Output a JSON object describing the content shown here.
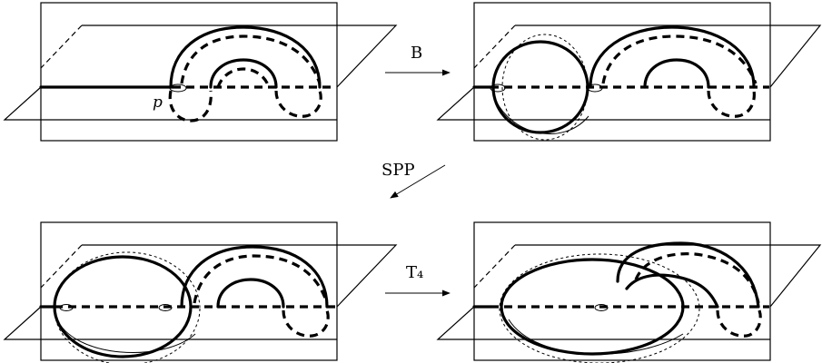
{
  "labels": {
    "point_p": "p",
    "move_b": "B",
    "move_spp": "SPP",
    "move_t4": "T₄"
  }
}
